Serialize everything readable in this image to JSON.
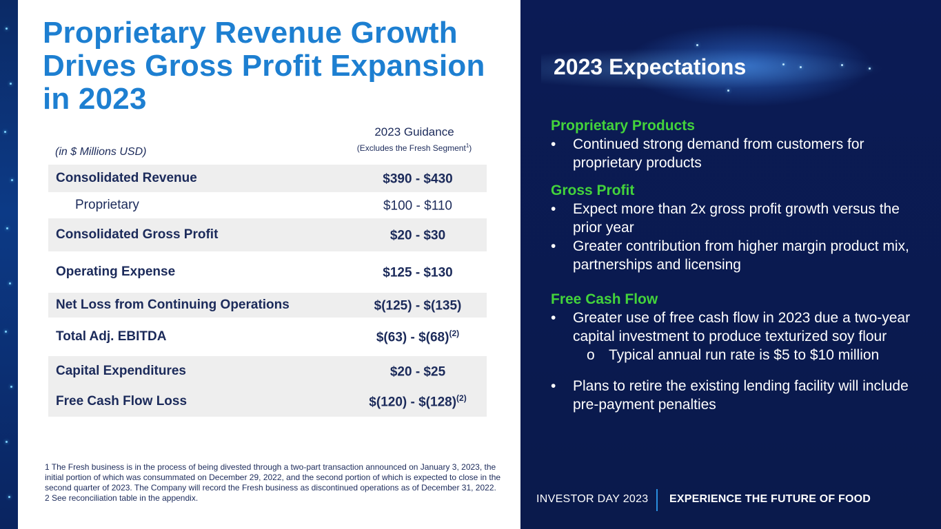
{
  "title_lines": [
    "Proprietary Revenue Growth",
    "Drives Gross Profit Expansion",
    "in 2023"
  ],
  "table": {
    "units": "(in $ Millions USD)",
    "guidance_title": "2023 Guidance",
    "guidance_subtitle": "(Excludes the Fresh Segment",
    "guidance_subtitle_sup": "1",
    "guidance_subtitle_end": ")",
    "rows": [
      {
        "label": "Consolidated  Revenue",
        "value": "$390 - $430",
        "sup": ""
      },
      {
        "label": "Proprietary",
        "value": "$100 - $110",
        "sup": ""
      },
      {
        "label": "Consolidated Gross Profit",
        "value": "$20 - $30",
        "sup": ""
      },
      {
        "label": "Operating Expense",
        "value": "$125 - $130",
        "sup": ""
      },
      {
        "label": "Net Loss from Continuing Operations",
        "value": "$(125) - $(135)",
        "sup": ""
      },
      {
        "label": "Total Adj. EBITDA",
        "value": "$(63) - $(68)",
        "sup": "(2)"
      },
      {
        "label": "Capital Expenditures",
        "value": "$20 - $25",
        "sup": ""
      },
      {
        "label": "Free Cash Flow Loss",
        "value": "$(120) - $(128)",
        "sup": "(2)"
      }
    ]
  },
  "footnotes": {
    "note1": "1 The Fresh business is in the process of being divested through a two-part transaction announced on January 3, 2023, the initial portion of which was consummated on December 29, 2022, and the second portion of which is expected to close in the second quarter of 2023. The Company will record the Fresh business as discontinued operations as of December 31, 2022.",
    "note2": "2 See reconciliation table in the appendix."
  },
  "expectations": {
    "title": "2023 Expectations",
    "bullet_marker": "•",
    "sub_marker": "o",
    "proprietary_products": {
      "heading": "Proprietary Products",
      "bullets": [
        "Continued strong demand from customers for proprietary products"
      ]
    },
    "gross_profit": {
      "heading": "Gross Profit",
      "bullets": [
        "Expect more than 2x gross profit growth versus the prior year",
        "Greater contribution from higher margin product mix, partnerships and licensing"
      ]
    },
    "free_cash_flow": {
      "heading": "Free Cash Flow",
      "bullet1": "Greater use of free cash flow in 2023 due a two-year capital investment to produce texturized soy flour",
      "sub_bullet": "Typical annual run rate is $5 to $10 million",
      "bullet2": "Plans to retire the existing lending facility will include pre-payment penalties"
    }
  },
  "footer": {
    "left": "INVESTOR DAY 2023",
    "right": "EXPERIENCE THE FUTURE OF FOOD"
  },
  "colors": {
    "title_blue": "#1d7fd1",
    "navy": "#1b2a5a",
    "green": "#43d33b",
    "dark_bg": "#0a1a4c"
  }
}
